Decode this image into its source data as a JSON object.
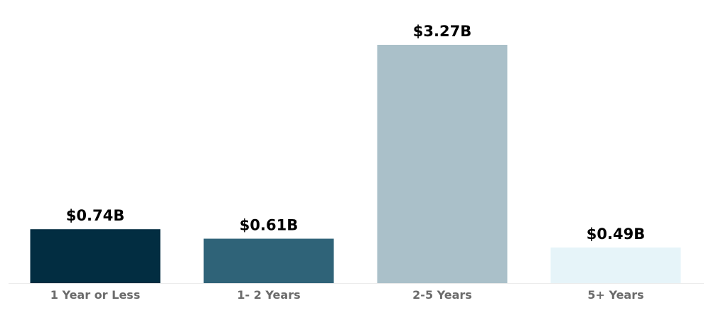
{
  "chart_data": {
    "type": "bar",
    "categories": [
      "1 Year or Less",
      "1- 2 Years",
      "2-5 Years",
      "5+ Years"
    ],
    "values": [
      0.74,
      0.61,
      3.27,
      0.49
    ],
    "value_labels": [
      "$0.74B",
      "$0.61B",
      "$3.27B",
      "$0.49B"
    ],
    "bar_colors": [
      "#022d41",
      "#2f6378",
      "#aac0c9",
      "#e6f4f9"
    ],
    "axis_color": "#ececec",
    "label_color": "#6b6b6b",
    "title": "",
    "xlabel": "",
    "ylabel": "",
    "ylim": [
      0,
      3.27
    ],
    "grid": false,
    "legend": "none"
  }
}
